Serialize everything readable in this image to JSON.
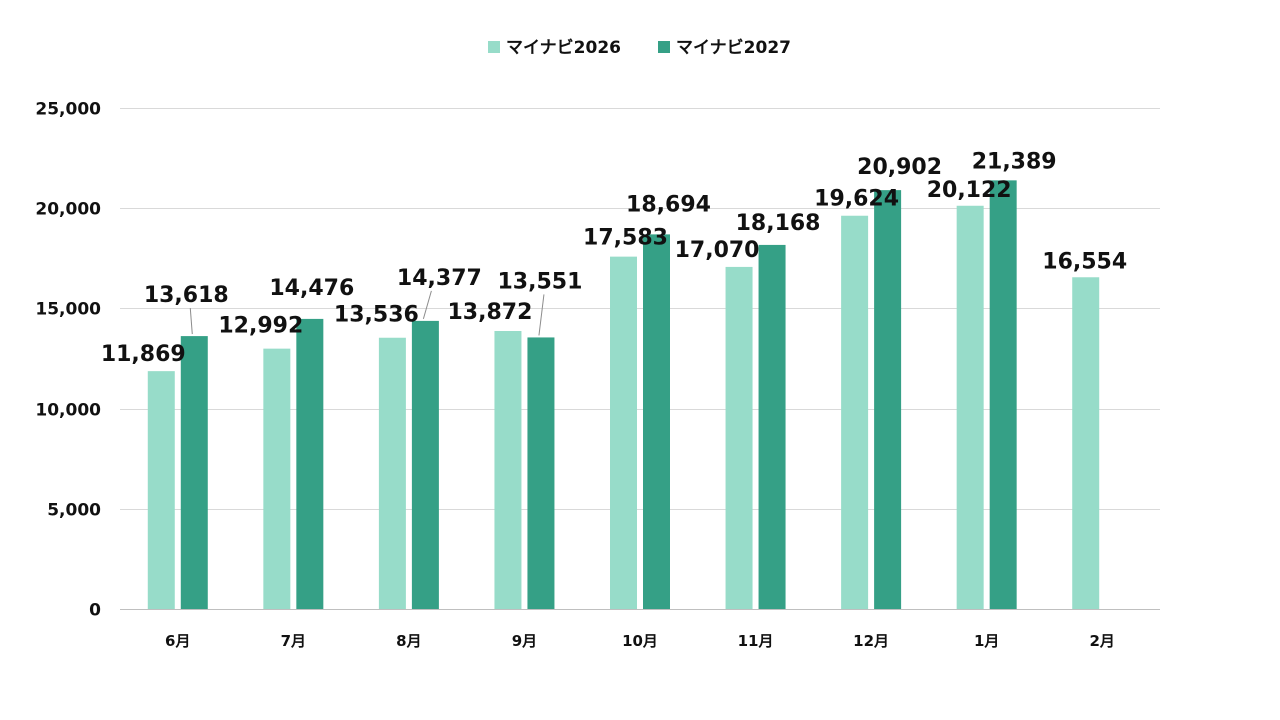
{
  "chart_data": {
    "type": "bar",
    "title": "",
    "xlabel": "",
    "ylabel": "",
    "categories": [
      "6月",
      "7月",
      "8月",
      "9月",
      "10月",
      "11月",
      "12月",
      "1月",
      "2月"
    ],
    "series": [
      {
        "name": "マイナビ2026",
        "color": "#97dcc9",
        "values": [
          11869,
          12992,
          13536,
          13872,
          17583,
          17070,
          19624,
          20122,
          16554
        ],
        "labels": [
          "11,869",
          "12,992",
          "13,536",
          "13,872",
          "17,583",
          "17,070",
          "19,624",
          "20,122",
          "16,554"
        ]
      },
      {
        "name": "マイナビ2027",
        "color": "#35a086",
        "values": [
          13618,
          14476,
          14377,
          13551,
          18694,
          18168,
          20902,
          21389,
          null
        ],
        "labels": [
          "13,618",
          "14,476",
          "14,377",
          "13,551",
          "18,694",
          "18,168",
          "20,902",
          "21,389",
          null
        ]
      }
    ],
    "ylim": [
      0,
      25000
    ],
    "yticks": [
      0,
      5000,
      10000,
      15000,
      20000,
      25000
    ],
    "ytick_labels": [
      "0",
      "5,000",
      "10,000",
      "15,000",
      "20,000",
      "25,000"
    ],
    "grid": true,
    "legend_position": "top-center"
  }
}
